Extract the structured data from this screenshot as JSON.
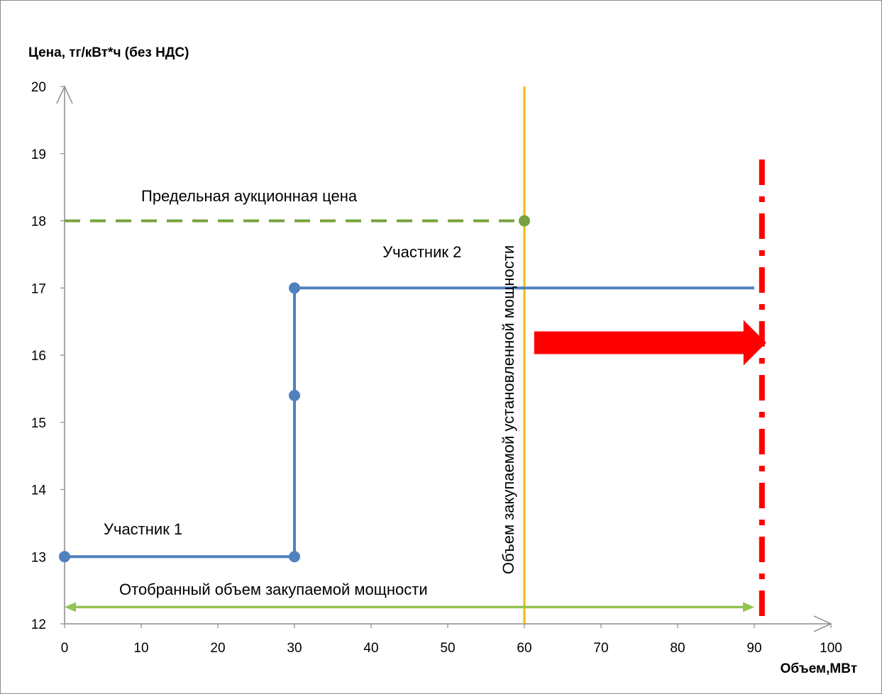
{
  "chart_data": {
    "type": "line",
    "title": "",
    "ylabel": "Цена, тг/кВт*ч (без НДС)",
    "xlabel": "Объем,МВт",
    "xlim": [
      0,
      100
    ],
    "ylim": [
      12,
      20
    ],
    "x_ticks": [
      "0",
      "10",
      "20",
      "30",
      "40",
      "50",
      "60",
      "70",
      "80",
      "90",
      "100"
    ],
    "y_ticks": [
      "12",
      "13",
      "14",
      "15",
      "16",
      "17",
      "18",
      "19",
      "20"
    ],
    "grid": false,
    "series": [
      {
        "name": "Участник 1",
        "color": "#4f81bd",
        "points": [
          [
            0,
            13
          ],
          [
            30,
            13
          ]
        ]
      },
      {
        "name": "",
        "color": "#4f81bd",
        "points": [
          [
            30,
            13
          ],
          [
            30,
            15.4
          ],
          [
            30,
            17
          ]
        ]
      },
      {
        "name": "Участник 2",
        "color": "#4f81bd",
        "points": [
          [
            30,
            17
          ],
          [
            90,
            17
          ]
        ]
      }
    ],
    "price_cap": {
      "label": "Предельная аукционная цена",
      "y": 18,
      "x_end": 60,
      "color": "#77a33e"
    },
    "capacity_line": {
      "label": "Объем закупаемой установленной мощности",
      "x": 60,
      "color": "#f5b800"
    },
    "selected_volume": {
      "label": "Отобранный объем закупаемой мощности",
      "x_start": 0,
      "x_end": 90,
      "y": 12.25,
      "color": "#92c353"
    },
    "limit_line": {
      "x": 91,
      "color": "#ff0000"
    },
    "shift_arrow": {
      "x_start": 61,
      "x_end": 91,
      "y": 16.1,
      "color": "#ff0000"
    },
    "annotations": [
      {
        "text": "Участник 1",
        "x": 5,
        "y": 13.35
      },
      {
        "text": "Участник 2",
        "x": 41.5,
        "y": 17.48
      }
    ]
  }
}
